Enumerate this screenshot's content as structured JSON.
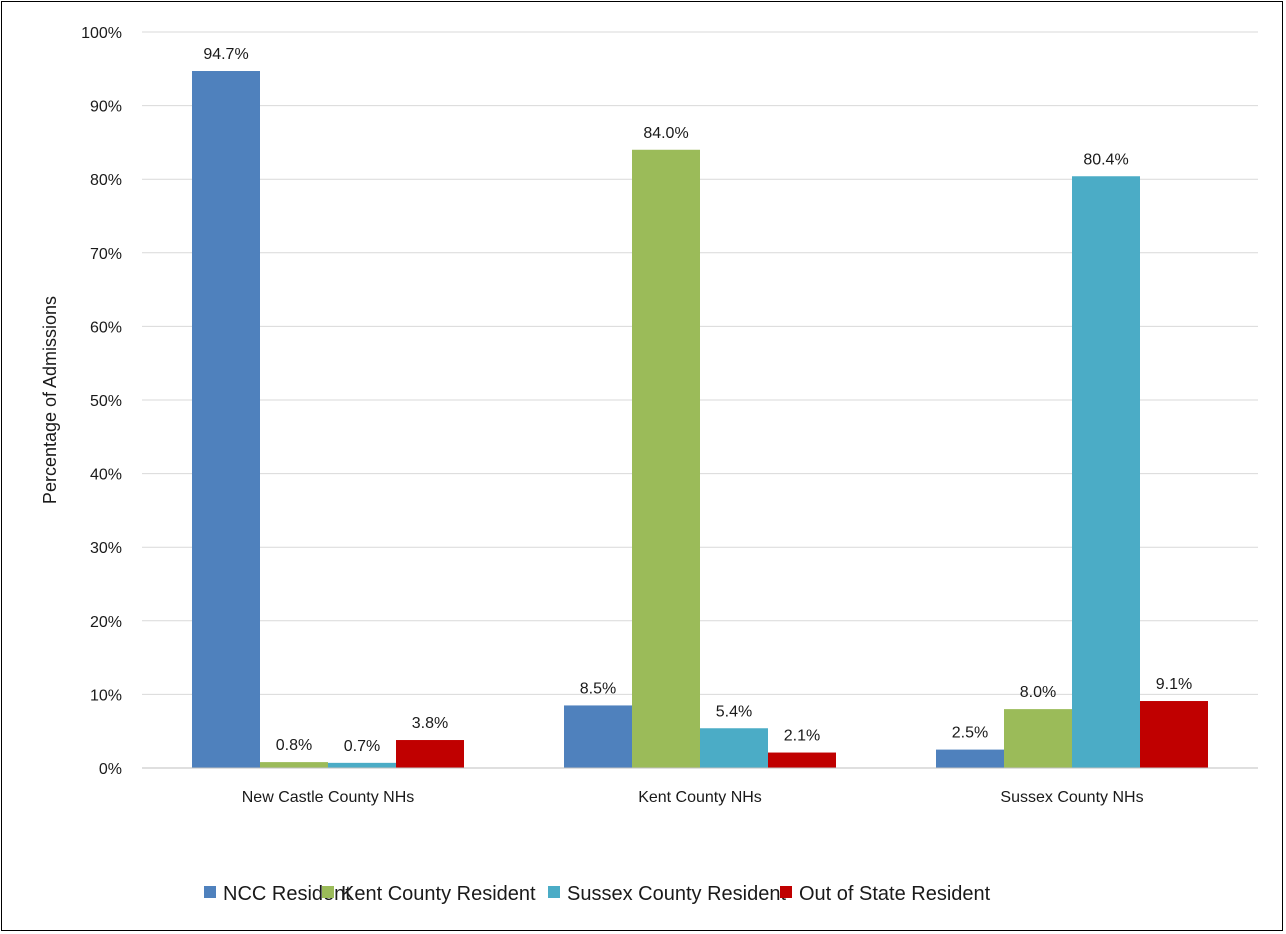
{
  "chart_data": {
    "type": "bar",
    "categories": [
      "New Castle County NHs",
      "Kent County NHs",
      "Sussex County NHs"
    ],
    "series": [
      {
        "name": "NCC Resident",
        "color": "#4f81bd",
        "values": [
          94.7,
          8.5,
          2.5
        ]
      },
      {
        "name": "Kent County Resident",
        "color": "#9bbb59",
        "values": [
          0.8,
          84.0,
          8.0
        ]
      },
      {
        "name": "Sussex County Resident",
        "color": "#4bacc6",
        "values": [
          0.7,
          5.4,
          80.4
        ]
      },
      {
        "name": "Out of State Resident",
        "color": "#c00000",
        "values": [
          3.8,
          2.1,
          9.1
        ]
      }
    ],
    "data_labels": [
      [
        "94.7%",
        "8.5%",
        "2.5%"
      ],
      [
        "0.8%",
        "84.0%",
        "8.0%"
      ],
      [
        "0.7%",
        "5.4%",
        "80.4%"
      ],
      [
        "3.8%",
        "2.1%",
        "9.1%"
      ]
    ],
    "title": "",
    "xlabel": "",
    "ylabel": "Percentage of Admissions",
    "ylim": [
      0,
      100
    ],
    "yticks": [
      0,
      10,
      20,
      30,
      40,
      50,
      60,
      70,
      80,
      90,
      100
    ],
    "ytick_labels": [
      "0%",
      "10%",
      "20%",
      "30%",
      "40%",
      "50%",
      "60%",
      "70%",
      "80%",
      "90%",
      "100%"
    ],
    "grid": true,
    "legend_position": "bottom"
  }
}
